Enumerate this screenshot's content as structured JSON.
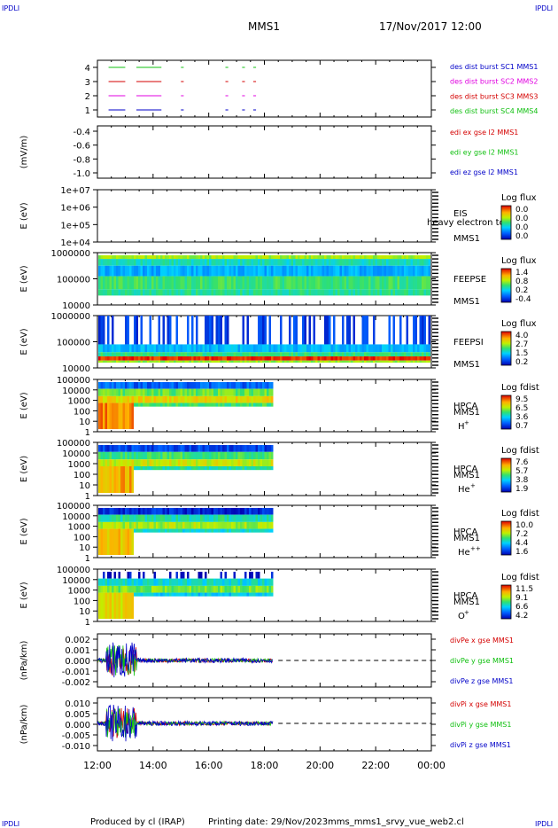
{
  "header": {
    "corner_label": "IPDLI",
    "spacecraft": "MMS1",
    "datetime": "17/Nov/2017 12:00"
  },
  "footer": {
    "produced_by": "Produced by cl (IRAP)",
    "printing_date": "Printing date: 29/Nov/2023",
    "filename": "mms_mms1_srvy_vue_web2.cl"
  },
  "colors": {
    "red": "#d40000",
    "magenta": "#e000e0",
    "green": "#10c010",
    "blue": "#0000c8",
    "light_green": "#33cc33"
  },
  "chart_data": {
    "x_ticks": [
      "12:00",
      "14:00",
      "16:00",
      "18:00",
      "20:00",
      "22:00",
      "00:00"
    ],
    "x_range_hours": [
      12,
      24
    ],
    "panels": [
      {
        "type": "timeline",
        "y_ticks": [
          "4",
          "3",
          "2",
          "1"
        ],
        "labels": [
          "des dist burst SC1 MMS1",
          "des dist burst SC2 MMS2",
          "des dist burst SC3 MMS3",
          "des dist burst SC4 MMS4"
        ],
        "label_colors": [
          "#0000c8",
          "#e000e0",
          "#d40000",
          "#10c010"
        ],
        "burst_intervals": [
          [
            12.4,
            13.0
          ],
          [
            13.4,
            14.3
          ],
          [
            15.0,
            15.1
          ],
          [
            16.6,
            16.7
          ],
          [
            17.2,
            17.3
          ],
          [
            17.6,
            17.7
          ]
        ]
      },
      {
        "type": "line",
        "ylabel": "(mV/m)",
        "y_ticks": [
          "-0.4",
          "-0.6",
          "-0.8",
          "-1.0"
        ],
        "ylim": [
          -1.0,
          -0.4
        ],
        "labels": [
          "edi ex gse l2 MMS1",
          "edi ey gse l2 MMS1",
          "edi ez gse l2 MMS1"
        ],
        "label_colors": [
          "#d40000",
          "#10c010",
          "#0000c8"
        ]
      },
      {
        "type": "heatmap",
        "ylabel": "E (eV)",
        "y_ticks": [
          "1e+07",
          "1e+06",
          "1e+05",
          "1e+04"
        ],
        "instrument": "EIS",
        "spacecraft": "MMS1",
        "overlay": "heavy electron to",
        "colorbar_title": "Log flux",
        "colorbar_ticks": [
          "0.0",
          "0.0",
          "0.0",
          "0.0"
        ]
      },
      {
        "type": "heatmap",
        "ylabel": "E (eV)",
        "y_ticks": [
          "1000000",
          "100000",
          "10000"
        ],
        "instrument": "FEEPSE",
        "spacecraft": "MMS1",
        "colorbar_title": "Log flux",
        "colorbar_ticks": [
          "1.4",
          "0.8",
          "0.2",
          "-0.4"
        ]
      },
      {
        "type": "heatmap",
        "ylabel": "E (eV)",
        "y_ticks": [
          "1000000",
          "100000",
          "10000"
        ],
        "instrument": "FEEPSI",
        "spacecraft": "MMS1",
        "colorbar_title": "Log flux",
        "colorbar_ticks": [
          "4.0",
          "2.7",
          "1.5",
          "0.2"
        ]
      },
      {
        "type": "heatmap",
        "ylabel": "E (eV)",
        "y_ticks": [
          "100000",
          "10000",
          "1000",
          "100",
          "10",
          "1"
        ],
        "instrument": "HPCA",
        "spacecraft": "MMS1",
        "species": "H",
        "species_charge": "+",
        "colorbar_title": "Log fdist",
        "colorbar_ticks": [
          "9.5",
          "6.5",
          "3.6",
          "0.7"
        ]
      },
      {
        "type": "heatmap",
        "ylabel": "E (eV)",
        "y_ticks": [
          "100000",
          "10000",
          "1000",
          "100",
          "10",
          "1"
        ],
        "instrument": "HPCA",
        "spacecraft": "MMS1",
        "species": "He",
        "species_charge": "+",
        "colorbar_title": "Log fdist",
        "colorbar_ticks": [
          "7.6",
          "5.7",
          "3.8",
          "1.9"
        ]
      },
      {
        "type": "heatmap",
        "ylabel": "E (eV)",
        "y_ticks": [
          "100000",
          "10000",
          "1000",
          "100",
          "10",
          "1"
        ],
        "instrument": "HPCA",
        "spacecraft": "MMS1",
        "species": "He",
        "species_charge": "++",
        "colorbar_title": "Log fdist",
        "colorbar_ticks": [
          "10.0",
          "7.2",
          "4.4",
          "1.6"
        ]
      },
      {
        "type": "heatmap",
        "ylabel": "E (eV)",
        "y_ticks": [
          "100000",
          "10000",
          "1000",
          "100",
          "10",
          "1"
        ],
        "instrument": "HPCA",
        "spacecraft": "MMS1",
        "species": "O",
        "species_charge": "+",
        "colorbar_title": "Log fdist",
        "colorbar_ticks": [
          "11.5",
          "9.1",
          "6.6",
          "4.2"
        ]
      },
      {
        "type": "line",
        "ylabel": "(nPa/km)",
        "y_ticks": [
          "0.002",
          "0.001",
          "0.000",
          "-0.001",
          "-0.002"
        ],
        "ylim": [
          -0.0025,
          0.0025
        ],
        "labels": [
          "divPe x gse MMS1",
          "divPe y gse MMS1",
          "divPe z gse MMS1"
        ],
        "label_colors": [
          "#d40000",
          "#10c010",
          "#0000c8"
        ]
      },
      {
        "type": "line",
        "ylabel": "(nPa/km)",
        "y_ticks": [
          "0.010",
          "0.005",
          "0.000",
          "-0.005",
          "-0.010"
        ],
        "ylim": [
          -0.0125,
          0.0115
        ],
        "labels": [
          "divPi x gse MMS1",
          "divPi y gse MMS1",
          "divPi z gse MMS1"
        ],
        "label_colors": [
          "#d40000",
          "#10c010",
          "#0000c8"
        ]
      }
    ]
  }
}
